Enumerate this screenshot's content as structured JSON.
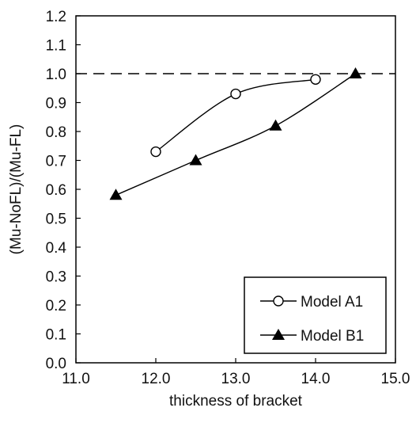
{
  "chart_data": {
    "type": "line",
    "xlabel": "thickness of bracket",
    "ylabel": "(Mu-NoFL)/(Mu-FL)",
    "xlim": [
      11.0,
      15.0
    ],
    "ylim": [
      0.0,
      1.2
    ],
    "x_ticks": [
      "11.0",
      "12.0",
      "13.0",
      "14.0",
      "15.0"
    ],
    "y_ticks": [
      "0.0",
      "0.1",
      "0.2",
      "0.3",
      "0.4",
      "0.5",
      "0.6",
      "0.7",
      "0.8",
      "0.9",
      "1.0",
      "1.1",
      "1.2"
    ],
    "reference_line": {
      "y": 1.0,
      "style": "dashed"
    },
    "grid": false,
    "legend_position": "bottom-right",
    "series": [
      {
        "name": "Model A1",
        "marker": "open-circle",
        "x": [
          12.0,
          13.0,
          14.0
        ],
        "y": [
          0.73,
          0.93,
          0.98
        ]
      },
      {
        "name": "Model B1",
        "marker": "filled-triangle",
        "x": [
          11.5,
          12.5,
          13.5,
          14.5
        ],
        "y": [
          0.58,
          0.7,
          0.82,
          1.0
        ]
      }
    ],
    "colors": {
      "line": "#000000",
      "background": "#ffffff"
    }
  }
}
